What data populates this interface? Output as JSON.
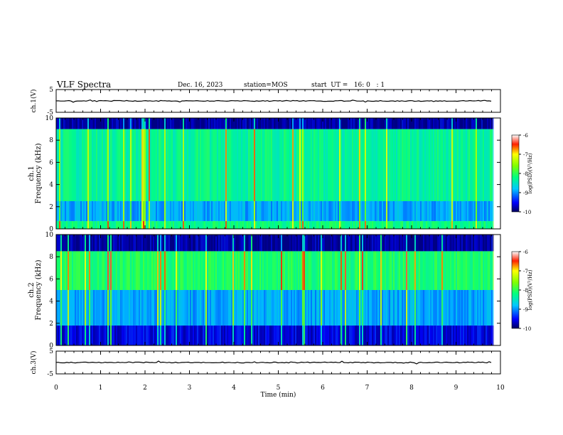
{
  "header": {
    "title": "VLF Spectra",
    "date": "Dec. 16, 2023",
    "station": "station=MOS",
    "start": "start  UT =   16: 0   : 1"
  },
  "chart_data": [
    {
      "type": "line",
      "panel": "ch1-waveform",
      "ylabel": "ch.1(V)",
      "ylim": [
        -5,
        5
      ],
      "y_ticks": [
        "5",
        "-5"
      ],
      "baseline_value": 0
    },
    {
      "type": "heatmap",
      "panel": "ch1-spectrogram",
      "ylabel_line1": "ch.1",
      "ylabel_line2": "Frequency (kHz)",
      "ylim": [
        0,
        10
      ],
      "y_ticks": [
        "0",
        "2",
        "4",
        "6",
        "8",
        "10"
      ],
      "colorbar": {
        "label": "log(PSD)(V²/Hz)",
        "min": -10,
        "max": -6,
        "ticks": [
          "-6",
          "-7",
          "-8",
          "-9",
          "-10"
        ]
      },
      "bands": [
        {
          "from": 0,
          "to": 0.7,
          "level": -8.2
        },
        {
          "from": 0.7,
          "to": 2.5,
          "level": -8.9
        },
        {
          "from": 2.5,
          "to": 9.0,
          "level": -8.3
        },
        {
          "from": 9.0,
          "to": 10,
          "level": -9.8
        }
      ]
    },
    {
      "type": "heatmap",
      "panel": "ch2-spectrogram",
      "ylabel_line1": "ch.2",
      "ylabel_line2": "Frequency (kHz)",
      "ylim": [
        0,
        10
      ],
      "y_ticks": [
        "0",
        "2",
        "4",
        "6",
        "8",
        "10"
      ],
      "colorbar": {
        "label": "log(PSD)(V²/Hz)",
        "min": -10,
        "max": -6,
        "ticks": [
          "-6",
          "-7",
          "-8",
          "-9",
          "-10"
        ]
      },
      "bands": [
        {
          "from": 0,
          "to": 1.8,
          "level": -9.6
        },
        {
          "from": 1.8,
          "to": 5.0,
          "level": -8.9
        },
        {
          "from": 5.0,
          "to": 8.5,
          "level": -8.1
        },
        {
          "from": 8.5,
          "to": 10,
          "level": -9.8
        }
      ]
    },
    {
      "type": "line",
      "panel": "ch3-waveform",
      "ylabel": "ch.3(V)",
      "ylim": [
        -5,
        5
      ],
      "y_ticks": [
        "5",
        "-5"
      ],
      "baseline_value": 0
    }
  ],
  "x_axis": {
    "label": "Time (min)",
    "xlim": [
      0,
      10
    ],
    "ticks": [
      "0",
      "1",
      "2",
      "3",
      "4",
      "5",
      "6",
      "7",
      "8",
      "9",
      "10"
    ],
    "data_end": 9.83
  }
}
